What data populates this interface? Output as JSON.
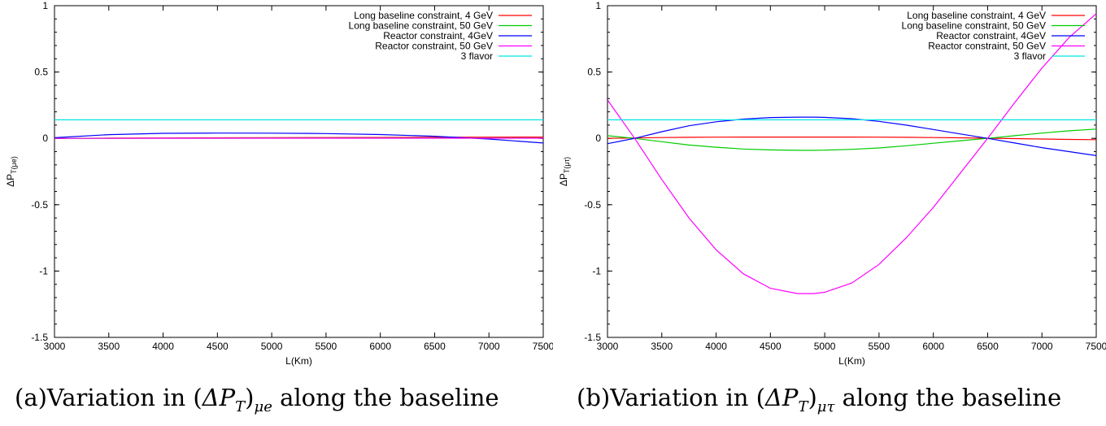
{
  "chart_data": [
    {
      "type": "line",
      "xlabel": "L(Km)",
      "ylabel": "ΔP",
      "ylabel_sub": "T(μe)",
      "xlim": [
        3000,
        7500
      ],
      "ylim": [
        -1.5,
        1
      ],
      "xticks": [
        "3000",
        "3500",
        "4000",
        "4500",
        "5000",
        "5500",
        "6000",
        "6500",
        "7000",
        "7500"
      ],
      "yticks": [
        "1",
        "0.5",
        "0",
        "-0.5",
        "-1",
        "-1.5"
      ],
      "grid": false,
      "legend_position": "top-right",
      "x": [
        3000,
        3500,
        4000,
        4500,
        5000,
        5500,
        6000,
        6500,
        7000,
        7500
      ],
      "series": [
        {
          "name": "Long baseline constraint, 4 GeV",
          "color": "#ff0000",
          "values": [
            0.0,
            0.002,
            0.003,
            0.004,
            0.005,
            0.006,
            0.007,
            0.008,
            0.009,
            0.01
          ]
        },
        {
          "name": "Long baseline constraint, 50 GeV",
          "color": "#00cc00",
          "values": [
            0.0,
            0.0,
            0.001,
            0.001,
            0.002,
            0.002,
            0.002,
            0.002,
            0.002,
            0.002
          ]
        },
        {
          "name": "Reactor constraint, 4GeV",
          "color": "#0000ff",
          "values": [
            0.005,
            0.028,
            0.038,
            0.04,
            0.039,
            0.036,
            0.029,
            0.016,
            -0.005,
            -0.035
          ]
        },
        {
          "name": "Reactor constraint, 50 GeV",
          "color": "#ff00ff",
          "values": [
            0.0,
            0.0,
            0.001,
            0.001,
            0.001,
            0.001,
            0.001,
            0.001,
            0.001,
            0.001
          ]
        },
        {
          "name": "3 flavor",
          "color": "#00e5e5",
          "values": [
            0.14,
            0.14,
            0.14,
            0.14,
            0.14,
            0.14,
            0.14,
            0.14,
            0.14,
            0.14
          ]
        }
      ]
    },
    {
      "type": "line",
      "xlabel": "L(Km)",
      "ylabel": "ΔP",
      "ylabel_sub": "T(μτ)",
      "xlim": [
        3000,
        7500
      ],
      "ylim": [
        -1.5,
        1
      ],
      "xticks": [
        "3000",
        "3500",
        "4000",
        "4500",
        "5000",
        "5500",
        "6000",
        "6500",
        "7000",
        "7500"
      ],
      "yticks": [
        "1",
        "0.5",
        "0",
        "-0.5",
        "-1",
        "-1.5"
      ],
      "grid": false,
      "legend_position": "top-right",
      "x": [
        3000,
        3250,
        3500,
        3750,
        4000,
        4250,
        4500,
        4750,
        4900,
        5000,
        5250,
        5500,
        5750,
        6000,
        6250,
        6500,
        6750,
        7000,
        7250,
        7500
      ],
      "series": [
        {
          "name": "Long baseline constraint, 4 GeV",
          "color": "#ff0000",
          "values": [
            0.0,
            0.003,
            0.006,
            0.008,
            0.009,
            0.01,
            0.01,
            0.01,
            0.01,
            0.01,
            0.01,
            0.009,
            0.008,
            0.006,
            0.004,
            0.001,
            -0.002,
            -0.005,
            -0.008,
            -0.01
          ]
        },
        {
          "name": "Long baseline constraint, 50 GeV",
          "color": "#00cc00",
          "values": [
            0.02,
            0.0,
            -0.025,
            -0.05,
            -0.067,
            -0.08,
            -0.087,
            -0.09,
            -0.09,
            -0.089,
            -0.083,
            -0.072,
            -0.056,
            -0.037,
            -0.018,
            0.0,
            0.02,
            0.04,
            0.057,
            0.07
          ]
        },
        {
          "name": "Reactor constraint, 4GeV",
          "color": "#0000ff",
          "values": [
            -0.04,
            0.0,
            0.05,
            0.095,
            0.125,
            0.145,
            0.157,
            0.16,
            0.16,
            0.158,
            0.148,
            0.128,
            0.1,
            0.067,
            0.033,
            0.0,
            -0.035,
            -0.07,
            -0.1,
            -0.13
          ]
        },
        {
          "name": "Reactor constraint, 50 GeV",
          "color": "#ff00ff",
          "values": [
            0.29,
            0.0,
            -0.31,
            -0.6,
            -0.84,
            -1.02,
            -1.13,
            -1.17,
            -1.17,
            -1.16,
            -1.09,
            -0.95,
            -0.75,
            -0.52,
            -0.26,
            0.0,
            0.27,
            0.53,
            0.76,
            0.94
          ]
        },
        {
          "name": "3 flavor",
          "color": "#00e5e5",
          "values": [
            0.14,
            0.14,
            0.14,
            0.14,
            0.14,
            0.14,
            0.14,
            0.14,
            0.14,
            0.14,
            0.14,
            0.14,
            0.14,
            0.14,
            0.14,
            0.14,
            0.14,
            0.14,
            0.14,
            0.14
          ]
        }
      ]
    }
  ],
  "captions": [
    {
      "prefix": "(a)Variation in (",
      "symbol": "ΔP",
      "sub_T": "T",
      "close": ")",
      "sub": "μe",
      "suffix": " along the baseline"
    },
    {
      "prefix": "(b)Variation in (",
      "symbol": "ΔP",
      "sub_T": "T",
      "close": ")",
      "sub": "μτ",
      "suffix": " along the baseline"
    }
  ]
}
